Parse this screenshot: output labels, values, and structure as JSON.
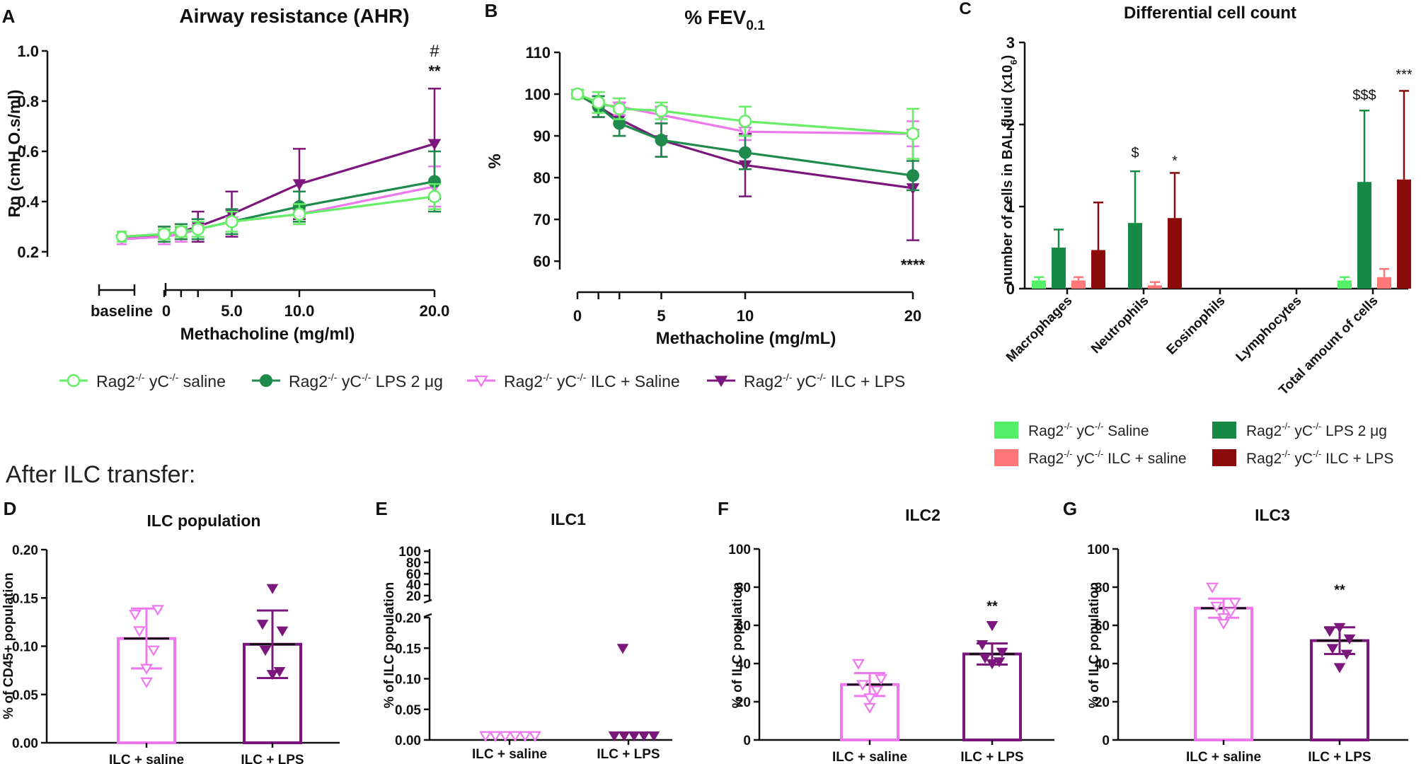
{
  "colors": {
    "saline": "#66ee66",
    "lps": "#1e8a4b",
    "ilc_saline": "#ee77ee",
    "ilc_lps": "#7b177c",
    "bar_saline": "#55ee66",
    "bar_lps": "#168a45",
    "bar_ilc_saline": "#ff7777",
    "bar_ilc_lps": "#8b0a0a"
  },
  "section_title": "After ILC transfer:",
  "legend_line": [
    {
      "prefix": "Rag2",
      "sup1": "-/-",
      "mid": " yC",
      "sup2": "-/-",
      "suffix": " saline"
    },
    {
      "prefix": "Rag2",
      "sup1": "-/-",
      "mid": " yC",
      "sup2": "-/-",
      "suffix": " LPS 2 μg"
    },
    {
      "prefix": "Rag2",
      "sup1": "-/-",
      "mid": " yC",
      "sup2": "-/-",
      "suffix": " ILC + Saline"
    },
    {
      "prefix": "Rag2",
      "sup1": "-/-",
      "mid": " yC",
      "sup2": "-/-",
      "suffix": " ILC + LPS"
    }
  ],
  "legend_bar": [
    {
      "prefix": "Rag2",
      "sup1": "-/-",
      "mid": " yC",
      "sup2": "-/-",
      "suffix": " Saline"
    },
    {
      "prefix": "Rag2",
      "sup1": "-/-",
      "mid": " yC",
      "sup2": "-/-",
      "suffix": " LPS 2 μg"
    },
    {
      "prefix": "Rag2",
      "sup1": "-/-",
      "mid": " yC",
      "sup2": "-/-",
      "suffix": " ILC + saline"
    },
    {
      "prefix": "Rag2",
      "sup1": "-/-",
      "mid": " yC",
      "sup2": "-/-",
      "suffix": " ILC + LPS"
    }
  ],
  "chart_data": [
    {
      "panel": "A",
      "type": "line",
      "title": "Airway resistance (AHR)",
      "xlabel": "Methacholine (mg/ml)",
      "ylabel_parts": [
        "Rn (cmH",
        "2",
        "O.s/ml)"
      ],
      "xticks": [
        0,
        5.0,
        10.0,
        20.0
      ],
      "xtick_labels": [
        "0",
        "5.0",
        "10.0",
        "20.0"
      ],
      "baseline_label": "baseline",
      "yticks": [
        0.2,
        0.4,
        0.6,
        0.8,
        1.0
      ],
      "ytick_labels": [
        "0.2",
        "0.4",
        "0.6",
        "0.8",
        "1.0"
      ],
      "ylim": [
        0.18,
        1.0
      ],
      "x": [
        0,
        1.25,
        2.5,
        5,
        10,
        20
      ],
      "series": [
        {
          "name": "saline",
          "baseline": 0.26,
          "baseline_err": 0.02,
          "values": [
            0.27,
            0.28,
            0.29,
            0.32,
            0.35,
            0.42
          ],
          "errors": [
            0.02,
            0.02,
            0.03,
            0.04,
            0.04,
            0.05
          ]
        },
        {
          "name": "lps",
          "baseline": 0.26,
          "baseline_err": 0.02,
          "values": [
            0.27,
            0.28,
            0.29,
            0.32,
            0.38,
            0.48
          ],
          "errors": [
            0.03,
            0.03,
            0.04,
            0.05,
            0.06,
            0.12
          ]
        },
        {
          "name": "ilc_saline",
          "baseline": 0.25,
          "baseline_err": 0.02,
          "values": [
            0.26,
            0.27,
            0.29,
            0.32,
            0.35,
            0.46
          ],
          "errors": [
            0.03,
            0.03,
            0.04,
            0.05,
            0.04,
            0.08
          ]
        },
        {
          "name": "ilc_lps",
          "baseline": 0.25,
          "baseline_err": 0.02,
          "values": [
            0.27,
            0.28,
            0.3,
            0.35,
            0.47,
            0.63
          ],
          "errors": [
            0.03,
            0.03,
            0.06,
            0.09,
            0.14,
            0.22
          ]
        }
      ],
      "annotations": [
        "#",
        "**"
      ]
    },
    {
      "panel": "B",
      "type": "line",
      "title_main": "% FEV",
      "title_sub": "0.1",
      "xlabel": "Methacholine (mg/mL)",
      "ylabel": "%",
      "xticks": [
        0,
        1.25,
        2.5,
        5,
        10,
        20
      ],
      "xtick_labels": [
        "0",
        "",
        "",
        "5",
        "10",
        "20"
      ],
      "yticks": [
        60,
        70,
        80,
        90,
        100,
        110
      ],
      "ytick_labels": [
        "60",
        "70",
        "80",
        "90",
        "100",
        "110"
      ],
      "ylim": [
        58,
        110
      ],
      "x": [
        0,
        1.25,
        2.5,
        5,
        10,
        20
      ],
      "series": [
        {
          "name": "saline",
          "values": [
            100,
            98,
            96.5,
            96,
            93.5,
            90.5
          ],
          "errors": [
            1,
            2.5,
            2.5,
            2,
            3.5,
            6
          ]
        },
        {
          "name": "lps",
          "values": [
            100,
            97,
            93,
            89,
            86,
            80.5
          ],
          "errors": [
            1,
            2.5,
            3,
            4,
            4,
            3.5
          ]
        },
        {
          "name": "ilc_saline",
          "values": [
            100,
            97.5,
            97,
            95,
            91,
            90.5
          ],
          "errors": [
            1,
            3,
            2,
            2,
            2,
            3
          ]
        },
        {
          "name": "ilc_lps",
          "values": [
            100,
            97,
            94,
            89,
            83,
            77.5
          ],
          "errors": [
            1,
            2.5,
            4,
            4,
            7.5,
            12.5
          ]
        }
      ],
      "annotations": [
        "****"
      ]
    },
    {
      "panel": "C",
      "type": "bar",
      "title": "Differential cell count",
      "ylabel_parts": [
        "number of cells in BAL fluid (x10",
        "6",
        ")"
      ],
      "categories": [
        "Macrophages",
        "Neutrophils",
        "Eosinophils",
        "Lymphocytes",
        "Total amount of cells"
      ],
      "yticks": [
        0,
        1,
        2,
        3
      ],
      "ytick_labels": [
        "0",
        "1",
        "2",
        "3"
      ],
      "ylim": [
        0,
        3
      ],
      "series": [
        {
          "name": "bar_saline",
          "values": [
            0.1,
            0,
            0,
            0,
            0.1
          ],
          "errors": [
            0.04,
            0,
            0,
            0,
            0.04
          ]
        },
        {
          "name": "bar_lps",
          "values": [
            0.5,
            0.8,
            0,
            0,
            1.3
          ],
          "errors": [
            0.22,
            0.63,
            0,
            0,
            0.87
          ]
        },
        {
          "name": "bar_ilc_saline",
          "values": [
            0.1,
            0.04,
            0,
            0,
            0.14
          ],
          "errors": [
            0.04,
            0.04,
            0,
            0,
            0.1
          ]
        },
        {
          "name": "bar_ilc_lps",
          "values": [
            0.47,
            0.86,
            0,
            0,
            1.33
          ],
          "errors": [
            0.58,
            0.55,
            0,
            0,
            1.08
          ]
        }
      ],
      "annotations": [
        "$",
        "*",
        "$$$",
        "***"
      ]
    },
    {
      "panel": "D",
      "type": "bar",
      "title": "ILC population",
      "ylabel": "% of CD45+ population",
      "categories": [
        "ILC + saline",
        "ILC + LPS"
      ],
      "yticks": [
        0,
        0.05,
        0.1,
        0.15,
        0.2
      ],
      "ytick_labels": [
        "0.00",
        "0.05",
        "0.10",
        "0.15",
        "0.20"
      ],
      "ylim": [
        0,
        0.2
      ],
      "values": [
        0.108,
        0.102
      ],
      "errors": [
        0.031,
        0.035
      ],
      "points": [
        [
          0.133,
          0.138,
          0.116,
          0.096,
          0.077,
          0.063
        ],
        [
          0.16,
          0.123,
          0.116,
          0.096,
          0.074,
          0.071
        ]
      ]
    },
    {
      "panel": "E",
      "type": "scatter",
      "title": "ILC1",
      "ylabel": "% of ILC population",
      "categories": [
        "ILC + saline",
        "ILC + LPS"
      ],
      "yticks": [
        0,
        0.05,
        0.1,
        0.15,
        0.2
      ],
      "ytick_labels": [
        "0.00",
        "0.05",
        "0.10",
        "0.15",
        "0.20"
      ],
      "upper_ticks": [
        "20",
        "40",
        "60",
        "80",
        "100"
      ],
      "ylim": [
        0,
        0.2
      ],
      "points": [
        [
          0,
          0,
          0,
          0,
          0,
          0
        ],
        [
          0.143,
          0,
          0,
          0,
          0,
          0
        ]
      ]
    },
    {
      "panel": "F",
      "type": "bar",
      "title": "ILC2",
      "ylabel": "% of ILC population",
      "categories": [
        "ILC + saline",
        "ILC + LPS"
      ],
      "yticks": [
        0,
        20,
        40,
        60,
        80,
        100
      ],
      "ytick_labels": [
        "0",
        "20",
        "40",
        "60",
        "80",
        "100"
      ],
      "ylim": [
        0,
        100
      ],
      "values": [
        29,
        45
      ],
      "errors": [
        6,
        5.5
      ],
      "points": [
        [
          40,
          32,
          29,
          26,
          22,
          17
        ],
        [
          60,
          50,
          46,
          43,
          41,
          40
        ]
      ],
      "annotations": [
        "**"
      ]
    },
    {
      "panel": "G",
      "type": "bar",
      "title": "ILC3",
      "ylabel": "% of ILC population",
      "categories": [
        "ILC + saline",
        "ILC + LPS"
      ],
      "yticks": [
        0,
        20,
        40,
        60,
        80,
        100
      ],
      "ytick_labels": [
        "0",
        "20",
        "40",
        "60",
        "80",
        "100"
      ],
      "ylim": [
        0,
        100
      ],
      "values": [
        69,
        52
      ],
      "errors": [
        5,
        7
      ],
      "points": [
        [
          80,
          72,
          70,
          67,
          64,
          61
        ],
        [
          59,
          57,
          53,
          48,
          45,
          38
        ]
      ],
      "annotations": [
        "**"
      ]
    }
  ]
}
